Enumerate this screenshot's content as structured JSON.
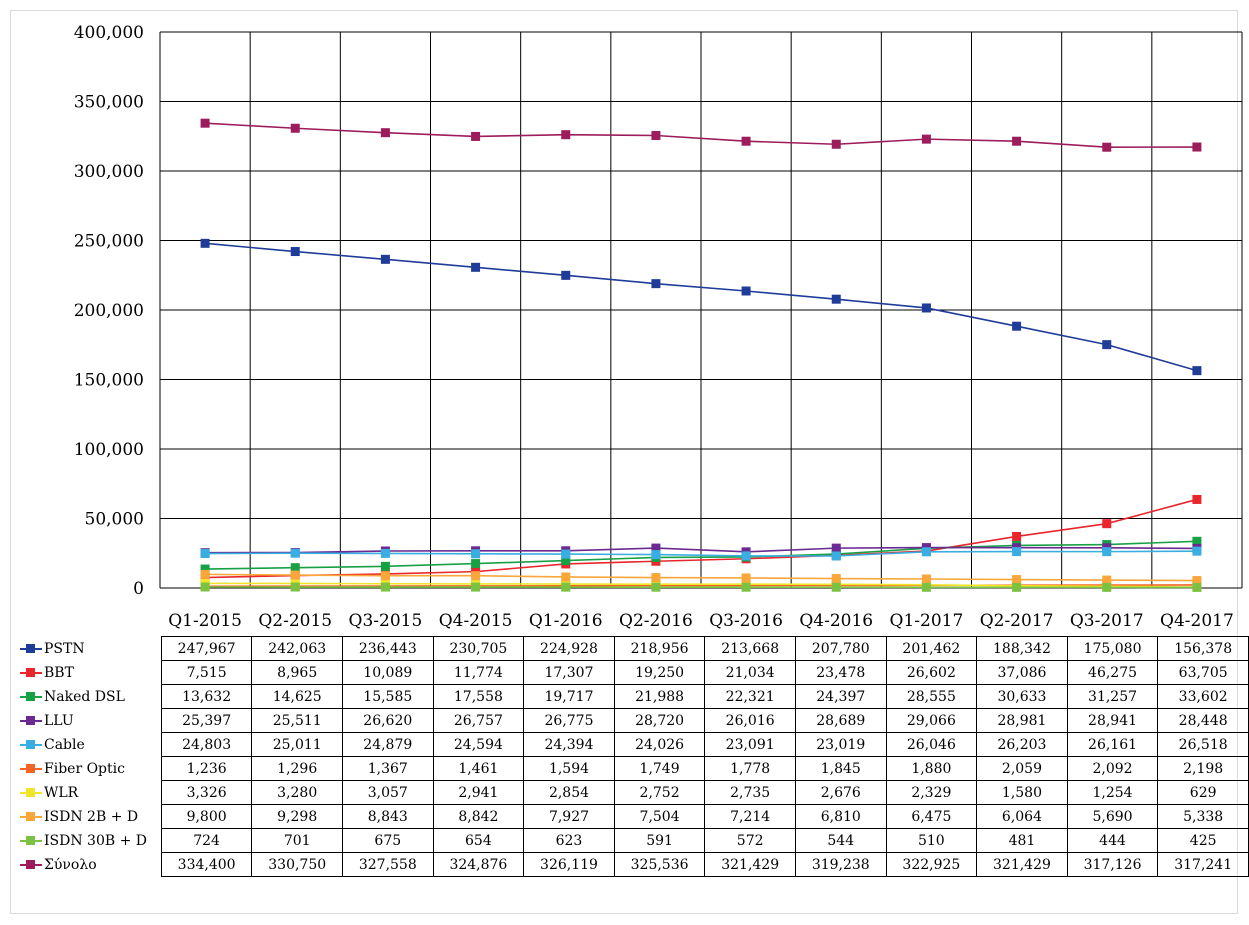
{
  "chart_data": {
    "type": "line",
    "categories": [
      "Q1-2015",
      "Q2-2015",
      "Q3-2015",
      "Q4-2015",
      "Q1-2016",
      "Q2-2016",
      "Q3-2016",
      "Q4-2016",
      "Q1-2017",
      "Q2-2017",
      "Q3-2017",
      "Q4-2017"
    ],
    "ylim": [
      0,
      400000
    ],
    "yticks": [
      "0",
      "50,000",
      "100,000",
      "150,000",
      "200,000",
      "250,000",
      "300,000",
      "350,000",
      "400,000"
    ],
    "grid": true,
    "legend": "table-left",
    "series": [
      {
        "name": "PSTN",
        "color": "#1f3c99",
        "values": [
          247967,
          242063,
          236443,
          230705,
          224928,
          218956,
          213668,
          207780,
          201462,
          188342,
          175080,
          156378
        ],
        "labels": [
          "247,967",
          "242,063",
          "236,443",
          "230,705",
          "224,928",
          "218,956",
          "213,668",
          "207,780",
          "201,462",
          "188,342",
          "175,080",
          "156,378"
        ]
      },
      {
        "name": "BBT",
        "color": "#e8262b",
        "values": [
          7515,
          8965,
          10089,
          11774,
          17307,
          19250,
          21034,
          23478,
          26602,
          37086,
          46275,
          63705
        ],
        "labels": [
          "7,515",
          "8,965",
          "10,089",
          "11,774",
          "17,307",
          "19,250",
          "21,034",
          "23,478",
          "26,602",
          "37,086",
          "46,275",
          "63,705"
        ]
      },
      {
        "name": "Naked DSL",
        "color": "#18a045",
        "values": [
          13632,
          14625,
          15585,
          17558,
          19717,
          21988,
          22321,
          24397,
          28555,
          30633,
          31257,
          33602
        ],
        "labels": [
          "13,632",
          "14,625",
          "15,585",
          "17,558",
          "19,717",
          "21,988",
          "22,321",
          "24,397",
          "28,555",
          "30,633",
          "31,257",
          "33,602"
        ]
      },
      {
        "name": "LLU",
        "color": "#6a2a91",
        "values": [
          25397,
          25511,
          26620,
          26757,
          26775,
          28720,
          26016,
          28689,
          29066,
          28981,
          28941,
          28448
        ],
        "labels": [
          "25,397",
          "25,511",
          "26,620",
          "26,757",
          "26,775",
          "28,720",
          "26,016",
          "28,689",
          "29,066",
          "28,981",
          "28,941",
          "28,448"
        ]
      },
      {
        "name": "Cable",
        "color": "#3aaee2",
        "values": [
          24803,
          25011,
          24879,
          24594,
          24394,
          24026,
          23091,
          23019,
          26046,
          26203,
          26161,
          26518
        ],
        "labels": [
          "24,803",
          "25,011",
          "24,879",
          "24,594",
          "24,394",
          "24,026",
          "23,091",
          "23,019",
          "26,046",
          "26,203",
          "26,161",
          "26,518"
        ]
      },
      {
        "name": "Fiber Optic",
        "color": "#f26522",
        "values": [
          1236,
          1296,
          1367,
          1461,
          1594,
          1749,
          1778,
          1845,
          1880,
          2059,
          2092,
          2198
        ],
        "labels": [
          "1,236",
          "1,296",
          "1,367",
          "1,461",
          "1,594",
          "1,749",
          "1,778",
          "1,845",
          "1,880",
          "2,059",
          "2,092",
          "2,198"
        ]
      },
      {
        "name": "WLR",
        "color": "#f0e52a",
        "values": [
          3326,
          3280,
          3057,
          2941,
          2854,
          2752,
          2735,
          2676,
          2329,
          1580,
          1254,
          629
        ],
        "labels": [
          "3,326",
          "3,280",
          "3,057",
          "2,941",
          "2,854",
          "2,752",
          "2,735",
          "2,676",
          "2,329",
          "1,580",
          "1,254",
          "629"
        ]
      },
      {
        "name": "ISDN 2B + D",
        "color": "#f9a63a",
        "values": [
          9800,
          9298,
          8843,
          8842,
          7927,
          7504,
          7214,
          6810,
          6475,
          6064,
          5690,
          5338
        ],
        "labels": [
          "9,800",
          "9,298",
          "8,843",
          "8,842",
          "7,927",
          "7,504",
          "7,214",
          "6,810",
          "6,475",
          "6,064",
          "5,690",
          "5,338"
        ]
      },
      {
        "name": "ISDN 30B + D",
        "color": "#7cc242",
        "values": [
          724,
          701,
          675,
          654,
          623,
          591,
          572,
          544,
          510,
          481,
          444,
          425
        ],
        "labels": [
          "724",
          "701",
          "675",
          "654",
          "623",
          "591",
          "572",
          "544",
          "510",
          "481",
          "444",
          "425"
        ]
      },
      {
        "name": "Σύνολο",
        "color": "#9c1c5c",
        "values": [
          334400,
          330750,
          327558,
          324876,
          326119,
          325536,
          321429,
          319238,
          322925,
          321429,
          317126,
          317241
        ],
        "labels": [
          "334,400",
          "330,750",
          "327,558",
          "324,876",
          "326,119",
          "325,536",
          "321,429",
          "319,238",
          "322,925",
          "321,429",
          "317,126",
          "317,241"
        ]
      }
    ]
  }
}
